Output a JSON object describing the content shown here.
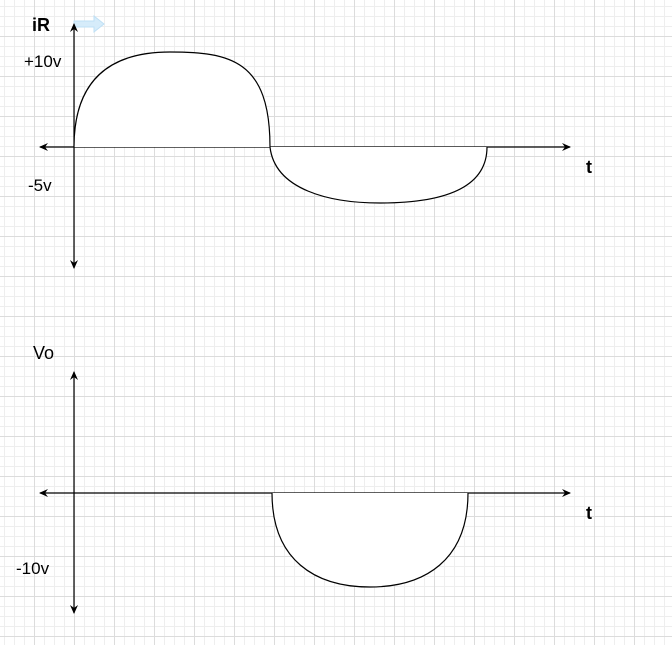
{
  "top_graph": {
    "y_label": "iR",
    "x_label": "t",
    "positive_level_label": "+10v",
    "negative_level_label": "-5v"
  },
  "bottom_graph": {
    "y_label": "Vo",
    "x_label": "t",
    "negative_level_label": "-10v"
  },
  "colors": {
    "stroke": "#000000",
    "grid_major": "#dcdcdc",
    "grid_minor": "#eeeeee",
    "hint_arrow": "#bfe0f5"
  }
}
